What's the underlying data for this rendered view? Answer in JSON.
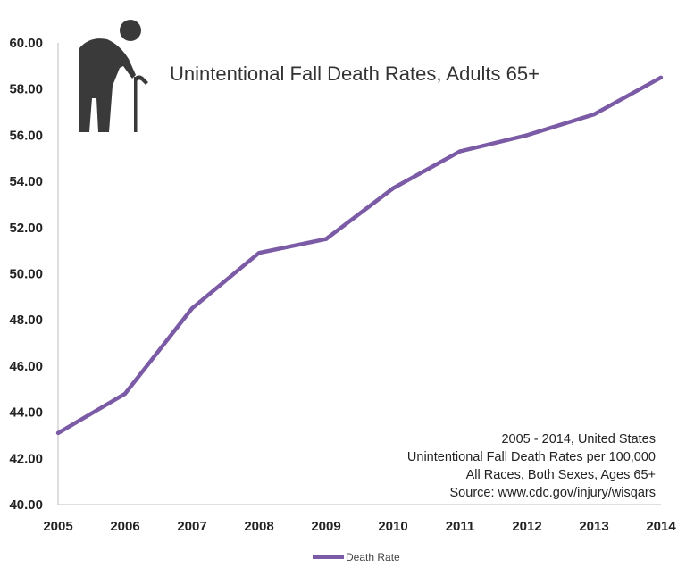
{
  "chart_data": {
    "type": "line",
    "title": "Unintentional Fall Death Rates, Adults 65+",
    "x": [
      2005,
      2006,
      2007,
      2008,
      2009,
      2010,
      2011,
      2012,
      2013,
      2014
    ],
    "x_tick_labels": [
      "2005",
      "2006",
      "2007",
      "2008",
      "2009",
      "2010",
      "2011",
      "2012",
      "2013",
      "2014"
    ],
    "y_tick_labels": [
      "40.00",
      "42.00",
      "44.00",
      "46.00",
      "48.00",
      "50.00",
      "52.00",
      "54.00",
      "56.00",
      "58.00",
      "60.00"
    ],
    "ylim": [
      40,
      60
    ],
    "series": [
      {
        "name": "Death Rate",
        "color": "#7b5aa6",
        "values": [
          43.1,
          44.8,
          48.5,
          50.9,
          51.5,
          53.7,
          55.3,
          56.0,
          56.9,
          58.5
        ]
      }
    ],
    "annotations": [
      "2005 - 2014, United States",
      "Unintentional Fall Death Rates per 100,000",
      "All Races, Both Sexes, Ages 65+",
      "Source: www.cdc.gov/injury/wisqars"
    ],
    "legend_position": "bottom-center",
    "grid": false,
    "icon": "elderly-person-with-cane-icon",
    "axis_color": "#bfbfbf"
  }
}
